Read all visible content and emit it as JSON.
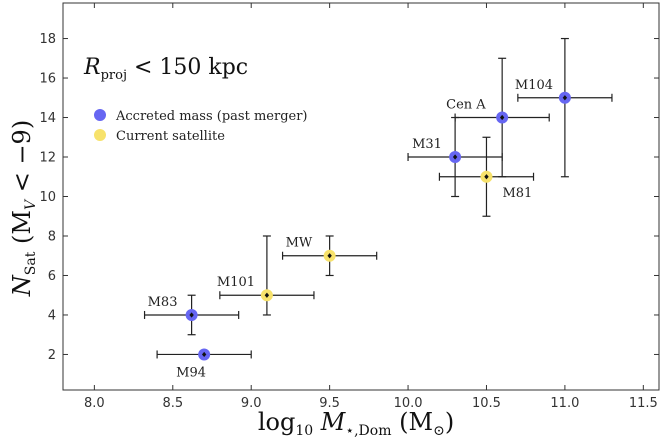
{
  "chart_data": {
    "type": "scatter",
    "xlim": [
      7.8,
      11.6
    ],
    "ylim": [
      0.2,
      19.8
    ],
    "xticks": [
      8.0,
      8.5,
      9.0,
      9.5,
      10.0,
      10.5,
      11.0,
      11.5
    ],
    "xtick_labels": [
      "8.0",
      "8.5",
      "9.0",
      "9.5",
      "10.0",
      "10.5",
      "11.0",
      "11.5"
    ],
    "yticks": [
      2,
      4,
      6,
      8,
      10,
      12,
      14,
      16,
      18
    ],
    "ytick_labels": [
      "2",
      "4",
      "6",
      "8",
      "10",
      "12",
      "14",
      "16",
      "18"
    ],
    "xlabel": {
      "pre": "log",
      "sub": "10",
      "main": " M",
      "msub": "⋆,Dom",
      "post": " (M",
      "psub": "⊙",
      "end": ")"
    },
    "ylabel": {
      "main": "N",
      "sub": "Sat",
      "post": " (M",
      "psub": "V",
      "end": " < −9)"
    },
    "annotation": {
      "main": "R",
      "sub": "proj",
      "rest": " < 150 kpc"
    },
    "legend": [
      {
        "label": "Accreted mass (past merger)",
        "color": "#6666f2"
      },
      {
        "label": "Current satellite",
        "color": "#f7e26b"
      }
    ],
    "points": [
      {
        "name": "M83",
        "x": 8.62,
        "y": 4,
        "xerr": [
          0.3,
          0.3
        ],
        "yerr": [
          1,
          1
        ],
        "type": "accreted",
        "label_dx": -44,
        "label_dy": -9
      },
      {
        "name": "M94",
        "x": 8.7,
        "y": 2,
        "xerr": [
          0.3,
          0.3
        ],
        "yerr": [
          0,
          0
        ],
        "type": "accreted",
        "label_dx": -28,
        "label_dy": 22
      },
      {
        "name": "M101",
        "x": 9.1,
        "y": 5,
        "xerr": [
          0.3,
          0.3
        ],
        "yerr": [
          1,
          3
        ],
        "type": "satellite",
        "label_dx": -50,
        "label_dy": -9
      },
      {
        "name": "MW",
        "x": 9.5,
        "y": 7,
        "xerr": [
          0.3,
          0.3
        ],
        "yerr": [
          1,
          1
        ],
        "type": "satellite",
        "label_dx": -44,
        "label_dy": -9
      },
      {
        "name": "M31",
        "x": 10.3,
        "y": 12,
        "xerr": [
          0.3,
          0.3
        ],
        "yerr": [
          2,
          2
        ],
        "type": "accreted",
        "label_dx": -43,
        "label_dy": -9
      },
      {
        "name": "M81",
        "x": 10.5,
        "y": 11,
        "xerr": [
          0.3,
          0.3
        ],
        "yerr": [
          2,
          2
        ],
        "type": "satellite",
        "label_dx": 16,
        "label_dy": 20
      },
      {
        "name": "Cen A",
        "x": 10.6,
        "y": 14,
        "xerr": [
          0.3,
          0.3
        ],
        "yerr": [
          3,
          3
        ],
        "type": "accreted",
        "label_dx": -56,
        "label_dy": -9
      },
      {
        "name": "M104",
        "x": 11.0,
        "y": 15,
        "xerr": [
          0.3,
          0.3
        ],
        "yerr": [
          4,
          3
        ],
        "type": "accreted",
        "label_dx": -50,
        "label_dy": -9
      }
    ],
    "colors": {
      "accreted": "#6666f2",
      "satellite": "#f7e26b"
    }
  }
}
